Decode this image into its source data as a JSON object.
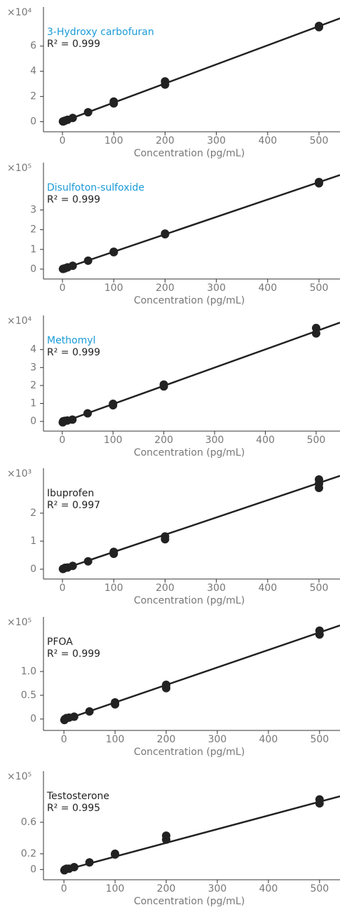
{
  "chart_data": [
    {
      "type": "scatter",
      "title": "3-Hydroxy carbofuran",
      "title_color": "#1a9bd7",
      "annotation": "R² = 0.999",
      "y_multiplier": "×10⁴",
      "x_label": "Concentration (pg/mL)",
      "color": "#222222",
      "x": [
        1,
        2,
        5,
        10,
        20,
        50,
        100,
        100,
        200,
        200,
        500,
        500
      ],
      "values": [
        0.02,
        0.03,
        0.08,
        0.15,
        0.3,
        0.75,
        1.45,
        1.6,
        2.95,
        3.2,
        7.5,
        7.6
      ],
      "fit": {
        "x": [
          0,
          541
        ],
        "values": [
          0,
          8.2
        ]
      },
      "xlim": [
        -37,
        541
      ],
      "xticks": [
        0,
        100,
        200,
        300,
        400,
        500
      ],
      "ylim": [
        -0.8,
        9.1
      ],
      "yticks": [
        0,
        2,
        4,
        6
      ]
    },
    {
      "type": "scatter",
      "title": "Disulfoton-sulfoxide",
      "title_color": "#1a9bd7",
      "annotation": "R² = 0.999",
      "y_multiplier": "×10⁵",
      "x_label": "Concentration (pg/mL)",
      "color": "#222222",
      "x": [
        1,
        2,
        5,
        10,
        20,
        50,
        100,
        100,
        200,
        200,
        500,
        500
      ],
      "values": [
        0.01,
        0.02,
        0.04,
        0.09,
        0.17,
        0.43,
        0.86,
        0.88,
        1.77,
        1.8,
        4.35,
        4.42
      ],
      "fit": {
        "x": [
          0,
          541
        ],
        "values": [
          0,
          4.77
        ]
      },
      "xlim": [
        -37,
        541
      ],
      "xticks": [
        0,
        100,
        200,
        300,
        400,
        500
      ],
      "ylim": [
        -0.5,
        5.4
      ],
      "yticks": [
        0,
        1,
        2,
        3
      ]
    },
    {
      "type": "scatter",
      "title": "Methomyl",
      "title_color": "#1a9bd7",
      "annotation": "R² = 0.999",
      "y_multiplier": "×10⁴",
      "x_label": "Concentration (pg/mL)",
      "color": "#222222",
      "x": [
        1,
        2,
        5,
        10,
        20,
        50,
        100,
        100,
        200,
        200,
        500,
        500
      ],
      "values": [
        -0.05,
        0.01,
        0.03,
        0.05,
        0.1,
        0.45,
        0.9,
        0.98,
        1.95,
        2.05,
        4.9,
        5.2
      ],
      "fit": {
        "x": [
          0,
          547
        ],
        "values": [
          -0.05,
          5.5
        ]
      },
      "xlim": [
        -37,
        547
      ],
      "xticks": [
        0,
        100,
        200,
        300,
        400,
        500
      ],
      "ylim": [
        -0.54,
        5.9
      ],
      "yticks": [
        0,
        1,
        2,
        3,
        4
      ]
    },
    {
      "type": "scatter",
      "title": "Ibuprofen",
      "title_color": "#222222",
      "annotation": "R² = 0.997",
      "y_multiplier": "×10³",
      "x_label": "Concentration (pg/mL)",
      "color": "#222222",
      "x": [
        1,
        2,
        5,
        10,
        20,
        50,
        100,
        100,
        200,
        200,
        500,
        500,
        500
      ],
      "values": [
        0.01,
        0.02,
        0.05,
        0.06,
        0.12,
        0.28,
        0.55,
        0.62,
        1.07,
        1.17,
        2.9,
        3.05,
        3.2
      ],
      "fit": {
        "x": [
          0,
          541
        ],
        "values": [
          0,
          3.33
        ]
      },
      "xlim": [
        -37,
        541
      ],
      "xticks": [
        0,
        100,
        200,
        300,
        400,
        500
      ],
      "ylim": [
        -0.35,
        3.6
      ],
      "yticks": [
        0,
        1,
        2
      ]
    },
    {
      "type": "scatter",
      "title": "PFOA",
      "title_color": "#222222",
      "annotation": "R² = 0.999",
      "y_multiplier": "×10⁵",
      "x_label": "Concentration (pg/mL)",
      "color": "#222222",
      "x": [
        1,
        2,
        5,
        10,
        20,
        50,
        100,
        100,
        200,
        200,
        500,
        500
      ],
      "values": [
        -0.02,
        0.0,
        0.02,
        0.03,
        0.05,
        0.16,
        0.31,
        0.35,
        0.65,
        0.72,
        1.78,
        1.86
      ],
      "fit": {
        "x": [
          0,
          540
        ],
        "values": [
          -0.02,
          1.97
        ]
      },
      "xlim": [
        -40,
        540
      ],
      "xticks": [
        0,
        100,
        200,
        300,
        400,
        500
      ],
      "ylim": [
        -0.24,
        2.15
      ],
      "yticks": [
        0,
        0.5,
        {
          "value": 1,
          "label": "1.0"
        }
      ]
    },
    {
      "type": "scatter",
      "title": "Testosterone",
      "title_color": "#222222",
      "annotation": "R² = 0.995",
      "y_multiplier": "×10⁵",
      "x_label": "Concentration (pg/mL)",
      "color": "#222222",
      "x": [
        1,
        2,
        5,
        10,
        20,
        50,
        100,
        100,
        200,
        200,
        500,
        500
      ],
      "values": [
        -0.01,
        0.0,
        0.01,
        0.01,
        0.03,
        0.09,
        0.19,
        0.2,
        0.38,
        0.43,
        0.84,
        0.89
      ],
      "fit": {
        "x": [
          0,
          540
        ],
        "values": [
          -0.01,
          0.93
        ]
      },
      "xlim": [
        -40,
        540
      ],
      "xticks": [
        0,
        100,
        200,
        300,
        400,
        500
      ],
      "ylim": [
        -0.13,
        1.25
      ],
      "yticks": [
        0,
        0.2,
        0.6
      ]
    }
  ]
}
